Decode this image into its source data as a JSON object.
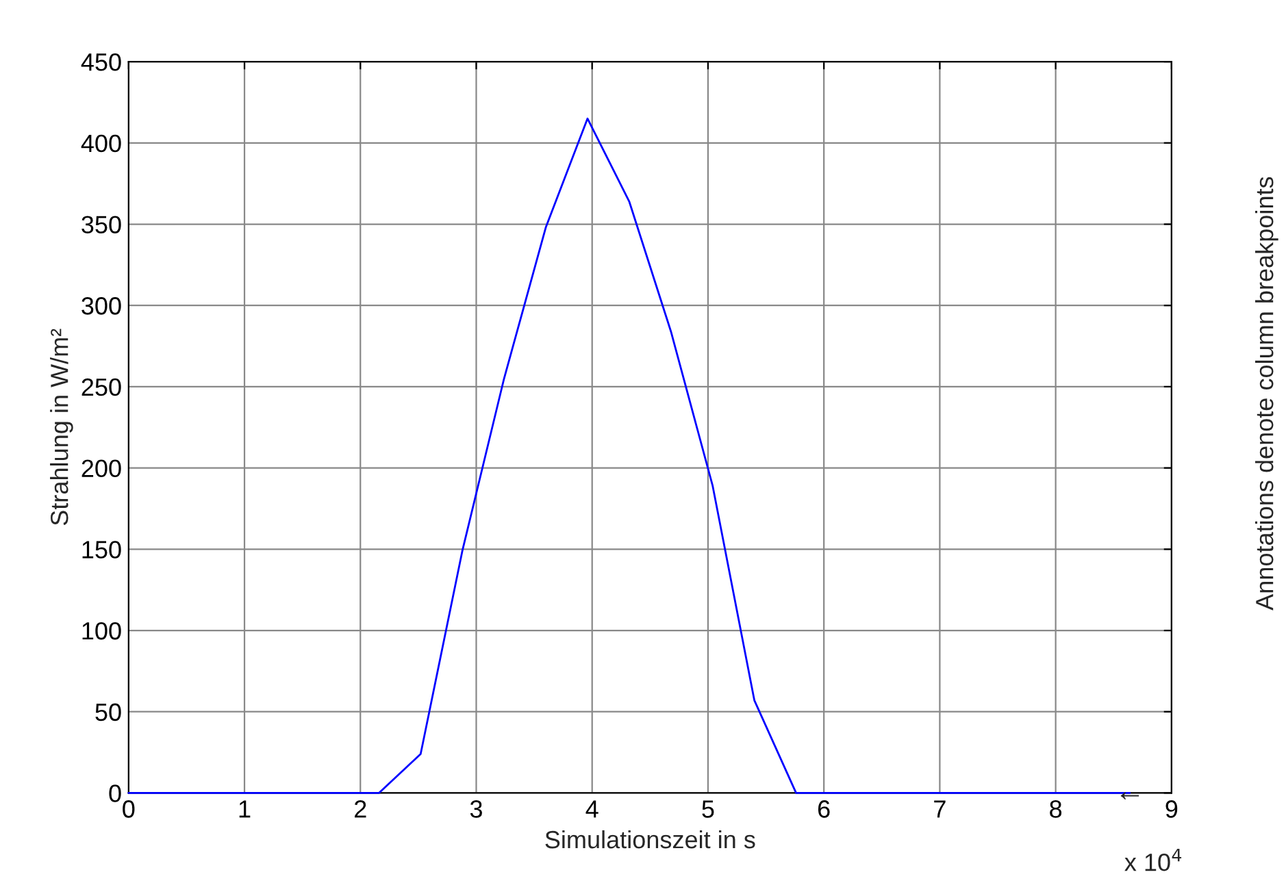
{
  "chart_data": {
    "type": "line",
    "xlabel": "Simulationszeit in s",
    "ylabel": "Strahlung in W/m²",
    "x": [
      0,
      0.36,
      0.72,
      1.08,
      1.44,
      1.8,
      2.16,
      2.52,
      2.88,
      3.24,
      3.6,
      3.96,
      4.32,
      4.68,
      5.04,
      5.4,
      5.76,
      6.12,
      6.48,
      6.84,
      7.2,
      7.56,
      7.92,
      8.28,
      8.64
    ],
    "series": [
      {
        "color": "#0000ff",
        "values": [
          0,
          0,
          0,
          0,
          0,
          0,
          0,
          24,
          149,
          255,
          348,
          415,
          364,
          284,
          189,
          57,
          0,
          0,
          0,
          0,
          0,
          0,
          0,
          0,
          0
        ]
      }
    ],
    "xlim": [
      0,
      9
    ],
    "ylim": [
      0,
      450
    ],
    "xticks": [
      0,
      1,
      2,
      3,
      4,
      5,
      6,
      7,
      8,
      9
    ],
    "yticks": [
      0,
      50,
      100,
      150,
      200,
      250,
      300,
      350,
      400,
      450
    ],
    "annotations": [
      "x 10$^{4}$",
      "Annotations denote column breakpoints",
      {
        "text": "←",
        "x": 8.64,
        "y": 0
      }
    ],
    "grid": true,
    "line_style": "solid",
    "marker": "none"
  }
}
